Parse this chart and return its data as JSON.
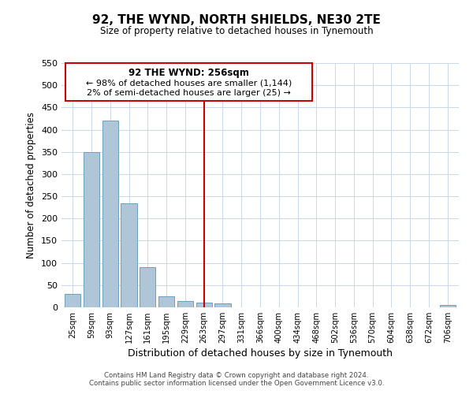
{
  "title": "92, THE WYND, NORTH SHIELDS, NE30 2TE",
  "subtitle": "Size of property relative to detached houses in Tynemouth",
  "xlabel": "Distribution of detached houses by size in Tynemouth",
  "ylabel": "Number of detached properties",
  "bar_labels": [
    "25sqm",
    "59sqm",
    "93sqm",
    "127sqm",
    "161sqm",
    "195sqm",
    "229sqm",
    "263sqm",
    "297sqm",
    "331sqm",
    "366sqm",
    "400sqm",
    "434sqm",
    "468sqm",
    "502sqm",
    "536sqm",
    "570sqm",
    "604sqm",
    "638sqm",
    "672sqm",
    "706sqm"
  ],
  "bar_heights": [
    30,
    350,
    420,
    235,
    90,
    25,
    15,
    10,
    8,
    0,
    0,
    0,
    0,
    0,
    0,
    0,
    0,
    0,
    0,
    0,
    5
  ],
  "bar_color": "#aec6d8",
  "bar_edge_color": "#6aa0c0",
  "vline_x": 7,
  "vline_color": "#cc0000",
  "ylim": [
    0,
    550
  ],
  "yticks": [
    0,
    50,
    100,
    150,
    200,
    250,
    300,
    350,
    400,
    450,
    500,
    550
  ],
  "annotation_title": "92 THE WYND: 256sqm",
  "annotation_line1": "← 98% of detached houses are smaller (1,144)",
  "annotation_line2": "2% of semi-detached houses are larger (25) →",
  "annotation_box_color": "#ffffff",
  "annotation_box_edge": "#cc0000",
  "footnote1": "Contains HM Land Registry data © Crown copyright and database right 2024.",
  "footnote2": "Contains public sector information licensed under the Open Government Licence v3.0.",
  "background_color": "#ffffff",
  "grid_color": "#c8d8e8"
}
